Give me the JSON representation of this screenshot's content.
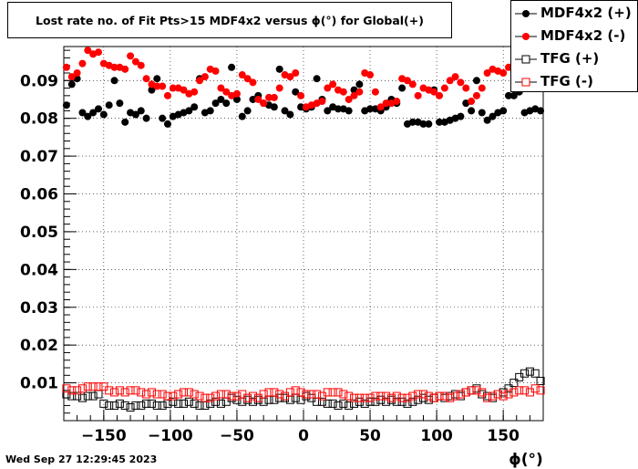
{
  "chart_data": {
    "type": "scatter",
    "title": "Lost rate no. of Fit Pts>15 MDF4x2 versus ϕ(°) for Global(+)",
    "xlabel": "ϕ(°)",
    "ylabel": "",
    "xlim": [
      -180,
      180
    ],
    "ylim": [
      0.0,
      0.099
    ],
    "xticks": [
      -150,
      -100,
      -50,
      0,
      50,
      100,
      150
    ],
    "yticks": [
      0.01,
      0.02,
      0.03,
      0.04,
      0.05,
      0.06,
      0.07,
      0.08,
      0.09
    ],
    "ytick_labels": [
      "0.01",
      "0.02",
      "0.03",
      "0.04",
      "0.05",
      "0.06",
      "0.07",
      "0.08",
      "0.09"
    ],
    "grid": true,
    "legend_position": "top-right",
    "series": [
      {
        "name": "MDF4x2 (+)",
        "color": "#000000",
        "marker": "filled-circle",
        "x": [
          -178,
          -174,
          -170,
          -166,
          -162,
          -158,
          -154,
          -150,
          -146,
          -142,
          -138,
          -134,
          -130,
          -126,
          -122,
          -118,
          -114,
          -110,
          -106,
          -102,
          -98,
          -94,
          -90,
          -86,
          -82,
          -78,
          -74,
          -70,
          -66,
          -62,
          -58,
          -54,
          -50,
          -46,
          -42,
          -38,
          -34,
          -30,
          -26,
          -22,
          -18,
          -14,
          -10,
          -6,
          -2,
          2,
          6,
          10,
          14,
          18,
          22,
          26,
          30,
          34,
          38,
          42,
          46,
          50,
          54,
          58,
          62,
          66,
          70,
          74,
          78,
          82,
          86,
          90,
          94,
          98,
          102,
          106,
          110,
          114,
          118,
          122,
          126,
          130,
          134,
          138,
          142,
          146,
          150,
          154,
          158,
          162,
          166,
          170,
          174,
          178
        ],
        "y": [
          0.0835,
          0.089,
          0.0905,
          0.0815,
          0.0805,
          0.0815,
          0.0825,
          0.081,
          0.0835,
          0.09,
          0.084,
          0.079,
          0.0815,
          0.081,
          0.082,
          0.08,
          0.0875,
          0.0905,
          0.08,
          0.0785,
          0.0805,
          0.081,
          0.0815,
          0.082,
          0.083,
          0.0905,
          0.0815,
          0.082,
          0.084,
          0.085,
          0.084,
          0.0935,
          0.085,
          0.0805,
          0.082,
          0.085,
          0.086,
          0.084,
          0.0835,
          0.083,
          0.093,
          0.082,
          0.081,
          0.087,
          0.083,
          0.0825,
          0.083,
          0.0905,
          0.085,
          0.082,
          0.083,
          0.0825,
          0.0825,
          0.082,
          0.0875,
          0.089,
          0.082,
          0.0825,
          0.0825,
          0.082,
          0.083,
          0.085,
          0.084,
          0.088,
          0.0785,
          0.079,
          0.079,
          0.0785,
          0.0785,
          0.0875,
          0.079,
          0.079,
          0.0795,
          0.08,
          0.0805,
          0.084,
          0.082,
          0.09,
          0.0815,
          0.0795,
          0.0805,
          0.0815,
          0.082,
          0.086,
          0.086,
          0.087,
          0.0815,
          0.082,
          0.0825,
          0.082
        ]
      },
      {
        "name": "MDF4x2 (-)",
        "color": "#ff0000",
        "marker": "filled-circle",
        "x": [
          -178,
          -174,
          -170,
          -166,
          -162,
          -158,
          -154,
          -150,
          -146,
          -142,
          -138,
          -134,
          -130,
          -126,
          -122,
          -118,
          -114,
          -110,
          -106,
          -102,
          -98,
          -94,
          -90,
          -86,
          -82,
          -78,
          -74,
          -70,
          -66,
          -62,
          -58,
          -54,
          -50,
          -46,
          -42,
          -38,
          -34,
          -30,
          -26,
          -22,
          -18,
          -14,
          -10,
          -6,
          -2,
          2,
          6,
          10,
          14,
          18,
          22,
          26,
          30,
          34,
          38,
          42,
          46,
          50,
          54,
          58,
          62,
          66,
          70,
          74,
          78,
          82,
          86,
          90,
          94,
          98,
          102,
          106,
          110,
          114,
          118,
          122,
          126,
          130,
          134,
          138,
          142,
          146,
          150,
          154,
          158,
          162,
          166,
          170,
          174,
          178
        ],
        "y": [
          0.0935,
          0.091,
          0.092,
          0.0945,
          0.098,
          0.097,
          0.0975,
          0.0945,
          0.094,
          0.0935,
          0.0935,
          0.093,
          0.0965,
          0.095,
          0.094,
          0.0905,
          0.089,
          0.0885,
          0.0885,
          0.086,
          0.088,
          0.088,
          0.0875,
          0.0865,
          0.087,
          0.09,
          0.091,
          0.093,
          0.0925,
          0.088,
          0.087,
          0.086,
          0.0865,
          0.0915,
          0.0905,
          0.0895,
          0.085,
          0.084,
          0.0855,
          0.0855,
          0.088,
          0.0915,
          0.091,
          0.092,
          0.086,
          0.083,
          0.0835,
          0.084,
          0.0845,
          0.088,
          0.089,
          0.0875,
          0.087,
          0.085,
          0.086,
          0.087,
          0.092,
          0.0915,
          0.087,
          0.083,
          0.084,
          0.084,
          0.0845,
          0.0905,
          0.09,
          0.089,
          0.086,
          0.088,
          0.0875,
          0.087,
          0.086,
          0.088,
          0.09,
          0.091,
          0.0895,
          0.088,
          0.0845,
          0.086,
          0.088,
          0.092,
          0.093,
          0.0925,
          0.092,
          0.0935,
          0.093,
          0.0915,
          0.093,
          0.0935,
          0.0925,
          0.092
        ]
      },
      {
        "name": "TFG (+)",
        "color": "#000000",
        "marker": "open-square",
        "x": [
          -178,
          -174,
          -170,
          -166,
          -162,
          -158,
          -154,
          -150,
          -146,
          -142,
          -138,
          -134,
          -130,
          -126,
          -122,
          -118,
          -114,
          -110,
          -106,
          -102,
          -98,
          -94,
          -90,
          -86,
          -82,
          -78,
          -74,
          -70,
          -66,
          -62,
          -58,
          -54,
          -50,
          -46,
          -42,
          -38,
          -34,
          -30,
          -26,
          -22,
          -18,
          -14,
          -10,
          -6,
          -2,
          2,
          6,
          10,
          14,
          18,
          22,
          26,
          30,
          34,
          38,
          42,
          46,
          50,
          54,
          58,
          62,
          66,
          70,
          74,
          78,
          82,
          86,
          90,
          94,
          98,
          102,
          106,
          110,
          114,
          118,
          122,
          126,
          130,
          134,
          138,
          142,
          146,
          150,
          154,
          158,
          162,
          166,
          170,
          174,
          178
        ],
        "y": [
          0.007,
          0.0065,
          0.0065,
          0.006,
          0.0065,
          0.0065,
          0.007,
          0.0045,
          0.004,
          0.004,
          0.0045,
          0.004,
          0.0035,
          0.004,
          0.004,
          0.0045,
          0.0045,
          0.004,
          0.004,
          0.0045,
          0.005,
          0.0045,
          0.0045,
          0.005,
          0.0045,
          0.004,
          0.004,
          0.0045,
          0.005,
          0.0045,
          0.005,
          0.006,
          0.0055,
          0.005,
          0.0055,
          0.005,
          0.0055,
          0.005,
          0.0055,
          0.0055,
          0.006,
          0.006,
          0.0055,
          0.006,
          0.0055,
          0.0065,
          0.006,
          0.005,
          0.005,
          0.0045,
          0.0045,
          0.004,
          0.0045,
          0.004,
          0.0045,
          0.005,
          0.0045,
          0.005,
          0.005,
          0.0055,
          0.005,
          0.0055,
          0.005,
          0.005,
          0.0045,
          0.005,
          0.0055,
          0.006,
          0.0055,
          0.006,
          0.0065,
          0.006,
          0.0065,
          0.007,
          0.0065,
          0.0075,
          0.008,
          0.0085,
          0.007,
          0.0065,
          0.006,
          0.007,
          0.0075,
          0.0085,
          0.01,
          0.0115,
          0.0125,
          0.013,
          0.0125,
          0.0105
        ]
      },
      {
        "name": "TFG (-)",
        "color": "#ff0000",
        "marker": "open-square",
        "x": [
          -178,
          -174,
          -170,
          -166,
          -162,
          -158,
          -154,
          -150,
          -146,
          -142,
          -138,
          -134,
          -130,
          -126,
          -122,
          -118,
          -114,
          -110,
          -106,
          -102,
          -98,
          -94,
          -90,
          -86,
          -82,
          -78,
          -74,
          -70,
          -66,
          -62,
          -58,
          -54,
          -50,
          -46,
          -42,
          -38,
          -34,
          -30,
          -26,
          -22,
          -18,
          -14,
          -10,
          -6,
          -2,
          2,
          6,
          10,
          14,
          18,
          22,
          26,
          30,
          34,
          38,
          42,
          46,
          50,
          54,
          58,
          62,
          66,
          70,
          74,
          78,
          82,
          86,
          90,
          94,
          98,
          102,
          106,
          110,
          114,
          118,
          122,
          126,
          130,
          134,
          138,
          142,
          146,
          150,
          154,
          158,
          162,
          166,
          170,
          174,
          178
        ],
        "y": [
          0.0085,
          0.008,
          0.008,
          0.0085,
          0.009,
          0.009,
          0.009,
          0.009,
          0.008,
          0.0075,
          0.008,
          0.0075,
          0.008,
          0.008,
          0.0075,
          0.007,
          0.0075,
          0.007,
          0.007,
          0.0065,
          0.0065,
          0.007,
          0.0075,
          0.0075,
          0.007,
          0.0065,
          0.006,
          0.006,
          0.0065,
          0.007,
          0.007,
          0.0065,
          0.0065,
          0.007,
          0.006,
          0.0065,
          0.006,
          0.007,
          0.0075,
          0.0075,
          0.007,
          0.0065,
          0.0075,
          0.008,
          0.0075,
          0.007,
          0.007,
          0.007,
          0.0065,
          0.0075,
          0.0075,
          0.0075,
          0.007,
          0.0065,
          0.006,
          0.006,
          0.006,
          0.006,
          0.0065,
          0.0065,
          0.0065,
          0.006,
          0.0065,
          0.006,
          0.006,
          0.0065,
          0.007,
          0.007,
          0.0065,
          0.006,
          0.0065,
          0.0065,
          0.006,
          0.0065,
          0.007,
          0.0075,
          0.008,
          0.008,
          0.0075,
          0.006,
          0.0065,
          0.007,
          0.0065,
          0.007,
          0.0075,
          0.008,
          0.008,
          0.0075,
          0.0085,
          0.008
        ]
      }
    ]
  },
  "timestamp": "Wed Sep 27 12:29:45 2023"
}
